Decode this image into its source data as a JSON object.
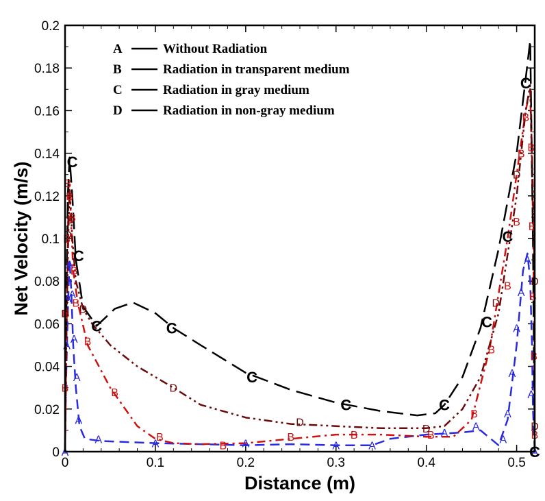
{
  "chart_data": {
    "type": "line",
    "xlabel": "Distance (m)",
    "ylabel": "Net Velocity (m/s)",
    "xlim": [
      0,
      0.52
    ],
    "ylim": [
      0,
      0.2
    ],
    "x_ticks": [
      {
        "value": 0,
        "label": "0"
      },
      {
        "value": 0.1,
        "label": "0.1"
      },
      {
        "value": 0.2,
        "label": "0.2"
      },
      {
        "value": 0.3,
        "label": "0.3"
      },
      {
        "value": 0.4,
        "label": "0.4"
      },
      {
        "value": 0.5,
        "label": "0.5"
      }
    ],
    "y_ticks": [
      {
        "value": 0,
        "label": "0"
      },
      {
        "value": 0.02,
        "label": "0.02"
      },
      {
        "value": 0.04,
        "label": "0.04"
      },
      {
        "value": 0.06,
        "label": "0.06"
      },
      {
        "value": 0.08,
        "label": "0.08"
      },
      {
        "value": 0.1,
        "label": "0.1"
      },
      {
        "value": 0.12,
        "label": "0.12"
      },
      {
        "value": 0.14,
        "label": "0.14"
      },
      {
        "value": 0.16,
        "label": "0.16"
      },
      {
        "value": 0.18,
        "label": "0.18"
      },
      {
        "value": 0.2,
        "label": "0.2"
      }
    ],
    "legend_position": "top-left",
    "series": [
      {
        "name": "A",
        "label": "Without Radiation",
        "color": "#2a2ae0",
        "style": "dash",
        "points": [
          [
            0,
            0
          ],
          [
            0.001,
            0.03
          ],
          [
            0.003,
            0.065
          ],
          [
            0.005,
            0.09
          ],
          [
            0.007,
            0.075
          ],
          [
            0.009,
            0.05
          ],
          [
            0.012,
            0.03
          ],
          [
            0.016,
            0.012
          ],
          [
            0.022,
            0.006
          ],
          [
            0.04,
            0.005
          ],
          [
            0.1,
            0.004
          ],
          [
            0.15,
            0.0035
          ],
          [
            0.2,
            0.003
          ],
          [
            0.25,
            0.0035
          ],
          [
            0.3,
            0.003
          ],
          [
            0.34,
            0.003
          ],
          [
            0.36,
            0.006
          ],
          [
            0.4,
            0.008
          ],
          [
            0.44,
            0.009
          ],
          [
            0.46,
            0.01
          ],
          [
            0.48,
            0.003
          ],
          [
            0.49,
            0.015
          ],
          [
            0.5,
            0.05
          ],
          [
            0.507,
            0.085
          ],
          [
            0.512,
            0.093
          ],
          [
            0.515,
            0.08
          ],
          [
            0.517,
            0.05
          ],
          [
            0.518,
            0.02
          ],
          [
            0.52,
            0
          ]
        ],
        "markers": [
          [
            0,
            0
          ],
          [
            0.002,
            0.05
          ],
          [
            0.003,
            0.072
          ],
          [
            0.005,
            0.088
          ],
          [
            0.008,
            0.074
          ],
          [
            0.01,
            0.053
          ],
          [
            0.013,
            0.035
          ],
          [
            0.015,
            0.015
          ],
          [
            0.037,
            0.006
          ],
          [
            0.1,
            0.004
          ],
          [
            0.2,
            0.004
          ],
          [
            0.3,
            0.003
          ],
          [
            0.34,
            0.003
          ],
          [
            0.42,
            0.009
          ],
          [
            0.455,
            0.012
          ],
          [
            0.485,
            0.006
          ],
          [
            0.49,
            0.018
          ],
          [
            0.495,
            0.037
          ],
          [
            0.5,
            0.058
          ],
          [
            0.505,
            0.075
          ],
          [
            0.512,
            0.09
          ],
          [
            0.516,
            0.027
          ],
          [
            0.52,
            0
          ]
        ]
      },
      {
        "name": "B",
        "label": "Radiation in transparent medium",
        "color": "#cc1111",
        "style": "dashdot",
        "points": [
          [
            0,
            0
          ],
          [
            0.001,
            0.03
          ],
          [
            0.002,
            0.065
          ],
          [
            0.003,
            0.1
          ],
          [
            0.004,
            0.125
          ],
          [
            0.006,
            0.115
          ],
          [
            0.009,
            0.085
          ],
          [
            0.014,
            0.07
          ],
          [
            0.025,
            0.05
          ],
          [
            0.05,
            0.03
          ],
          [
            0.08,
            0.012
          ],
          [
            0.1,
            0.006
          ],
          [
            0.12,
            0.004
          ],
          [
            0.15,
            0.0035
          ],
          [
            0.2,
            0.004
          ],
          [
            0.25,
            0.006
          ],
          [
            0.3,
            0.008
          ],
          [
            0.35,
            0.008
          ],
          [
            0.4,
            0.007
          ],
          [
            0.43,
            0.007
          ],
          [
            0.45,
            0.015
          ],
          [
            0.47,
            0.048
          ],
          [
            0.49,
            0.1
          ],
          [
            0.5,
            0.13
          ],
          [
            0.51,
            0.16
          ],
          [
            0.515,
            0.17
          ],
          [
            0.518,
            0.11
          ],
          [
            0.519,
            0.07
          ],
          [
            0.52,
            0.01
          ]
        ],
        "markers": [
          [
            0,
            0.03
          ],
          [
            0.001,
            0.065
          ],
          [
            0.002,
            0.1
          ],
          [
            0.003,
            0.126
          ],
          [
            0.005,
            0.12
          ],
          [
            0.008,
            0.11
          ],
          [
            0.01,
            0.085
          ],
          [
            0.012,
            0.07
          ],
          [
            0.025,
            0.052
          ],
          [
            0.055,
            0.028
          ],
          [
            0.105,
            0.007
          ],
          [
            0.175,
            0.003
          ],
          [
            0.25,
            0.007
          ],
          [
            0.32,
            0.008
          ],
          [
            0.405,
            0.008
          ],
          [
            0.453,
            0.018
          ],
          [
            0.472,
            0.048
          ],
          [
            0.49,
            0.078
          ],
          [
            0.5,
            0.108
          ],
          [
            0.505,
            0.14
          ],
          [
            0.51,
            0.157
          ],
          [
            0.516,
            0.143
          ],
          [
            0.517,
            0.106
          ],
          [
            0.518,
            0.073
          ],
          [
            0.519,
            0.045
          ],
          [
            0.52,
            0.008
          ]
        ]
      },
      {
        "name": "C",
        "label": "Radiation in gray medium",
        "color": "#000000",
        "style": "longdash",
        "points": [
          [
            0,
            0
          ],
          [
            0.001,
            0.05
          ],
          [
            0.003,
            0.12
          ],
          [
            0.005,
            0.138
          ],
          [
            0.008,
            0.12
          ],
          [
            0.012,
            0.09
          ],
          [
            0.02,
            0.068
          ],
          [
            0.035,
            0.059
          ],
          [
            0.055,
            0.067
          ],
          [
            0.075,
            0.07
          ],
          [
            0.1,
            0.065
          ],
          [
            0.12,
            0.058
          ],
          [
            0.15,
            0.05
          ],
          [
            0.2,
            0.037
          ],
          [
            0.25,
            0.029
          ],
          [
            0.3,
            0.023
          ],
          [
            0.35,
            0.019
          ],
          [
            0.39,
            0.017
          ],
          [
            0.41,
            0.018
          ],
          [
            0.42,
            0.022
          ],
          [
            0.44,
            0.035
          ],
          [
            0.46,
            0.058
          ],
          [
            0.48,
            0.095
          ],
          [
            0.5,
            0.14
          ],
          [
            0.51,
            0.175
          ],
          [
            0.515,
            0.193
          ],
          [
            0.518,
            0.1
          ],
          [
            0.52,
            0
          ]
        ],
        "markers": [
          [
            0.008,
            0.136
          ],
          [
            0.015,
            0.092
          ],
          [
            0.035,
            0.059
          ],
          [
            0.118,
            0.058
          ],
          [
            0.207,
            0.035
          ],
          [
            0.311,
            0.022
          ],
          [
            0.42,
            0.022
          ],
          [
            0.467,
            0.061
          ],
          [
            0.49,
            0.101
          ],
          [
            0.51,
            0.173
          ],
          [
            0.52,
            0
          ]
        ]
      },
      {
        "name": "D",
        "label": "Radiation in non-gray medium",
        "color": "#6b0a0a",
        "style": "dashdotdot",
        "points": [
          [
            0,
            0
          ],
          [
            0.001,
            0.04
          ],
          [
            0.003,
            0.09
          ],
          [
            0.005,
            0.125
          ],
          [
            0.008,
            0.1
          ],
          [
            0.012,
            0.08
          ],
          [
            0.02,
            0.067
          ],
          [
            0.03,
            0.06
          ],
          [
            0.05,
            0.05
          ],
          [
            0.08,
            0.04
          ],
          [
            0.12,
            0.03
          ],
          [
            0.15,
            0.022
          ],
          [
            0.2,
            0.016
          ],
          [
            0.25,
            0.013
          ],
          [
            0.3,
            0.012
          ],
          [
            0.35,
            0.011
          ],
          [
            0.4,
            0.011
          ],
          [
            0.42,
            0.012
          ],
          [
            0.44,
            0.02
          ],
          [
            0.46,
            0.035
          ],
          [
            0.48,
            0.065
          ],
          [
            0.5,
            0.12
          ],
          [
            0.51,
            0.16
          ],
          [
            0.515,
            0.172
          ],
          [
            0.518,
            0.12
          ],
          [
            0.52,
            0.08
          ]
        ],
        "markers": [
          [
            0,
            0.065
          ],
          [
            0.003,
            0.102
          ],
          [
            0.006,
            0.109
          ],
          [
            0.02,
            0.067
          ],
          [
            0.12,
            0.03
          ],
          [
            0.26,
            0.014
          ],
          [
            0.4,
            0.011
          ],
          [
            0.477,
            0.07
          ],
          [
            0.5,
            0.13
          ],
          [
            0.52,
            0.08
          ],
          [
            0.52,
            0.012
          ]
        ]
      }
    ]
  }
}
